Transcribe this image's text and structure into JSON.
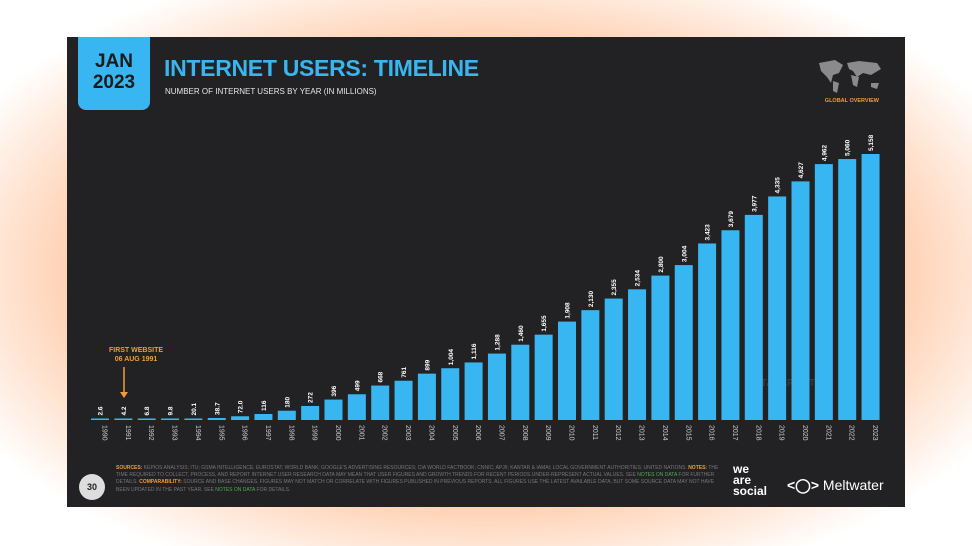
{
  "badge": {
    "month": "JAN",
    "year": "2023"
  },
  "header": {
    "title": "INTERNET USERS: TIMELINE",
    "subtitle": "NUMBER OF INTERNET USERS BY YEAR (IN MILLIONS)",
    "region_label": "GLOBAL OVERVIEW"
  },
  "annotation": {
    "line1": "FIRST WEBSITE",
    "line2": "06 AUG 1991"
  },
  "watermark": "DATAREPORTAL",
  "chart_data": {
    "type": "bar",
    "title": "INTERNET USERS: TIMELINE",
    "ylabel": "Internet users (millions)",
    "categories": [
      "1990",
      "1991",
      "1992",
      "1993",
      "1994",
      "1995",
      "1996",
      "1997",
      "1998",
      "1999",
      "2000",
      "2001",
      "2002",
      "2003",
      "2004",
      "2005",
      "2006",
      "2007",
      "2008",
      "2009",
      "2010",
      "2011",
      "2012",
      "2013",
      "2014",
      "2015",
      "2016",
      "2017",
      "2018",
      "2019",
      "2020",
      "2021",
      "2022",
      "2023"
    ],
    "values": [
      2.6,
      4.2,
      6.8,
      9.8,
      20.1,
      38.7,
      72.0,
      116,
      180,
      272,
      396,
      499,
      668,
      761,
      899,
      1004,
      1116,
      1288,
      1460,
      1655,
      1908,
      2130,
      2355,
      2534,
      2800,
      3004,
      3423,
      3679,
      3977,
      4335,
      4627,
      4962,
      5060,
      5158
    ],
    "labels": [
      "2.6",
      "4.2",
      "6.8",
      "9.8",
      "20.1",
      "38.7",
      "72.0",
      "116",
      "180",
      "272",
      "396",
      "499",
      "668",
      "761",
      "899",
      "1,004",
      "1,116",
      "1,288",
      "1,460",
      "1,655",
      "1,908",
      "2,130",
      "2,355",
      "2,534",
      "2,800",
      "3,004",
      "3,423",
      "3,679",
      "3,977",
      "4,335",
      "4,627",
      "4,962",
      "5,060",
      "5,158"
    ],
    "ylim": [
      0,
      5158
    ],
    "color": "#38b6f1"
  },
  "footer": {
    "sources_label": "SOURCES:",
    "sources": " KEPIOS ANALYSIS; ITU; GSMA INTELLIGENCE; EUROSTAT; WORLD BANK; GOOGLE'S ADVERTISING RESOURCES; CIA WORLD FACTBOOK; CNNIC; APJII; KANTAR & IAMAI; LOCAL GOVERNMENT AUTHORITIES; UNITED NATIONS. ",
    "notes_label": "NOTES:",
    "notes": " THE TIME REQUIRED TO COLLECT, PROCESS, AND REPORT INTERNET USER RESEARCH DATA MAY MEAN THAT USER FIGURES AND GROWTH TRENDS FOR RECENT PERIODS UNDER-REPRESENT ACTUAL VALUES. SEE ",
    "notes_link": "NOTES ON DATA",
    "notes_end": " FOR FURTHER DETAILS. ",
    "comparability_label": "COMPARABILITY:",
    "comparability": " SOURCE AND BASE CHANGES. FIGURES MAY NOT MATCH OR CORRELATE WITH FIGURES PUBLISHED IN PREVIOUS REPORTS. ALL FIGURES USE THE LATEST AVAILABLE DATA, BUT SOME SOURCE DATA MAY NOT HAVE BEEN UPDATED IN THE PAST YEAR. SEE ",
    "comparability_link": "NOTES ON DATA",
    "comparability_end": " FOR DETAILS.",
    "page_number": "30",
    "logo1_l1": "we",
    "logo1_l2": "are",
    "logo1_l3": "social",
    "logo2": "Meltwater"
  }
}
